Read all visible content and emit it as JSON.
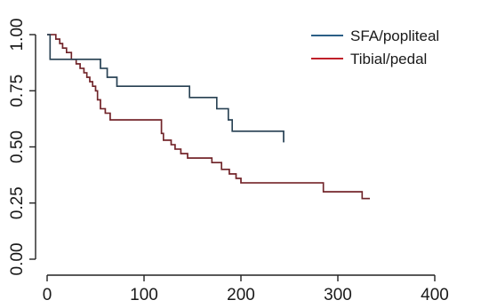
{
  "chart_data": {
    "type": "line",
    "step": true,
    "title": "",
    "xlabel": "",
    "ylabel": "",
    "xlim": [
      0,
      400
    ],
    "ylim": [
      0,
      1
    ],
    "x_ticks": [
      0,
      100,
      200,
      300,
      400
    ],
    "x_tick_labels": [
      "0",
      "100",
      "200",
      "300",
      "400"
    ],
    "y_ticks": [
      0,
      0.25,
      0.5,
      0.75,
      1
    ],
    "y_tick_labels": [
      "0.00",
      "0.25",
      "0.50",
      "0.75",
      "1.00"
    ],
    "grid": false,
    "legend_position": "top-right",
    "series": [
      {
        "name": "SFA/popliteal",
        "color": "#2b5f86",
        "x": [
          0,
          3,
          55,
          62,
          72,
          147,
          175,
          187,
          191,
          244,
          244
        ],
        "y": [
          1.0,
          0.89,
          0.85,
          0.81,
          0.77,
          0.72,
          0.67,
          0.62,
          0.57,
          0.57,
          0.52
        ]
      },
      {
        "name": "Tibial/pedal",
        "color": "#c0202a",
        "x": [
          0,
          9,
          13,
          16,
          20,
          25,
          30,
          34,
          38,
          41,
          44,
          47,
          50,
          52,
          55,
          60,
          65,
          118,
          120,
          128,
          132,
          138,
          145,
          155,
          170,
          180,
          188,
          195,
          200,
          205,
          285,
          325,
          333
        ],
        "y": [
          1.0,
          0.98,
          0.96,
          0.94,
          0.92,
          0.89,
          0.87,
          0.85,
          0.83,
          0.81,
          0.79,
          0.77,
          0.75,
          0.71,
          0.67,
          0.65,
          0.62,
          0.56,
          0.53,
          0.51,
          0.49,
          0.47,
          0.45,
          0.45,
          0.43,
          0.4,
          0.38,
          0.36,
          0.34,
          0.34,
          0.3,
          0.27,
          0.27
        ]
      }
    ]
  }
}
